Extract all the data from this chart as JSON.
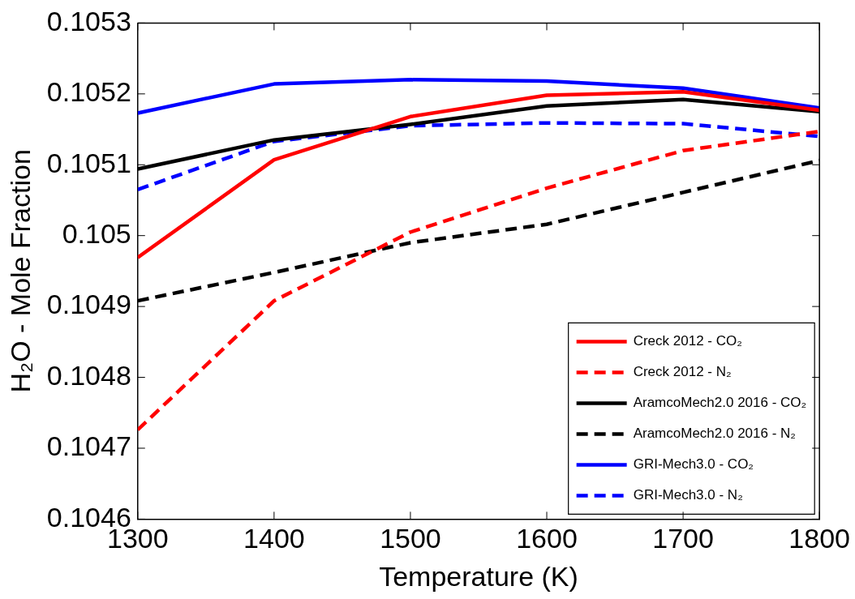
{
  "chart_data": {
    "type": "line",
    "xlabel": "Temperature (K)",
    "ylabel": "H₂O - Mole Fraction",
    "x": [
      1300,
      1400,
      1500,
      1600,
      1700,
      1800
    ],
    "xlim": [
      1300,
      1800
    ],
    "xticks": [
      1300,
      1400,
      1500,
      1600,
      1700,
      1800
    ],
    "ylim": [
      0.1046,
      0.1053
    ],
    "yticks": [
      0.1046,
      0.1047,
      0.1048,
      0.1049,
      0.105,
      0.1051,
      0.1052,
      0.1053
    ],
    "grid": false,
    "legend": "bottom right",
    "marker": "none",
    "series": [
      {
        "name": "Creck 2012 - CO₂",
        "color": "#ff0000",
        "line_style": "solid",
        "values": [
          0.104969,
          0.105107,
          0.105168,
          0.105198,
          0.105203,
          0.105177
        ]
      },
      {
        "name": "Creck 2012 - N₂",
        "color": "#ff0000",
        "line_style": "dashed",
        "values": [
          0.104726,
          0.104908,
          0.105005,
          0.105067,
          0.10512,
          0.105147
        ]
      },
      {
        "name": "AramcoMech2.0 2016 - CO₂",
        "color": "#000000",
        "line_style": "solid",
        "values": [
          0.105094,
          0.105135,
          0.105157,
          0.105183,
          0.105192,
          0.105175
        ]
      },
      {
        "name": "AramcoMech2.0 2016 - N₂",
        "color": "#000000",
        "line_style": "dashed",
        "values": [
          0.104908,
          0.104948,
          0.10499,
          0.105016,
          0.105061,
          0.105106
        ]
      },
      {
        "name": "GRI-Mech3.0 - CO₂",
        "color": "#0000ff",
        "line_style": "solid",
        "values": [
          0.105173,
          0.105214,
          0.10522,
          0.105218,
          0.105208,
          0.10518
        ]
      },
      {
        "name": "GRI-Mech3.0 - N₂",
        "color": "#0000ff",
        "line_style": "dashed",
        "values": [
          0.105065,
          0.105133,
          0.105155,
          0.105159,
          0.105158,
          0.10514
        ]
      }
    ]
  }
}
